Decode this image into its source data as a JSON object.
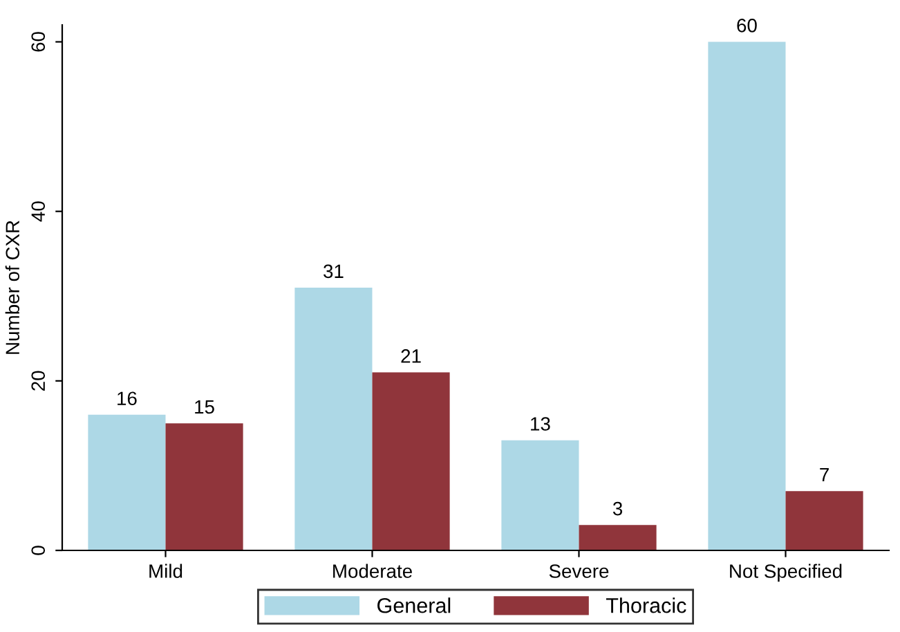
{
  "chart_data": {
    "type": "bar",
    "ylabel": "Number of CXR",
    "categories": [
      "Mild",
      "Moderate",
      "Severe",
      "Not Specified"
    ],
    "series": [
      {
        "name": "General",
        "color": "#add8e6",
        "values": [
          16,
          31,
          13,
          60
        ]
      },
      {
        "name": "Thoracic",
        "color": "#90353b",
        "values": [
          15,
          21,
          3,
          7
        ]
      }
    ],
    "ylim": [
      0,
      62
    ],
    "yticks": [
      0,
      20,
      40,
      60
    ],
    "grid": false,
    "legend": "bottom",
    "data_labels": true
  }
}
